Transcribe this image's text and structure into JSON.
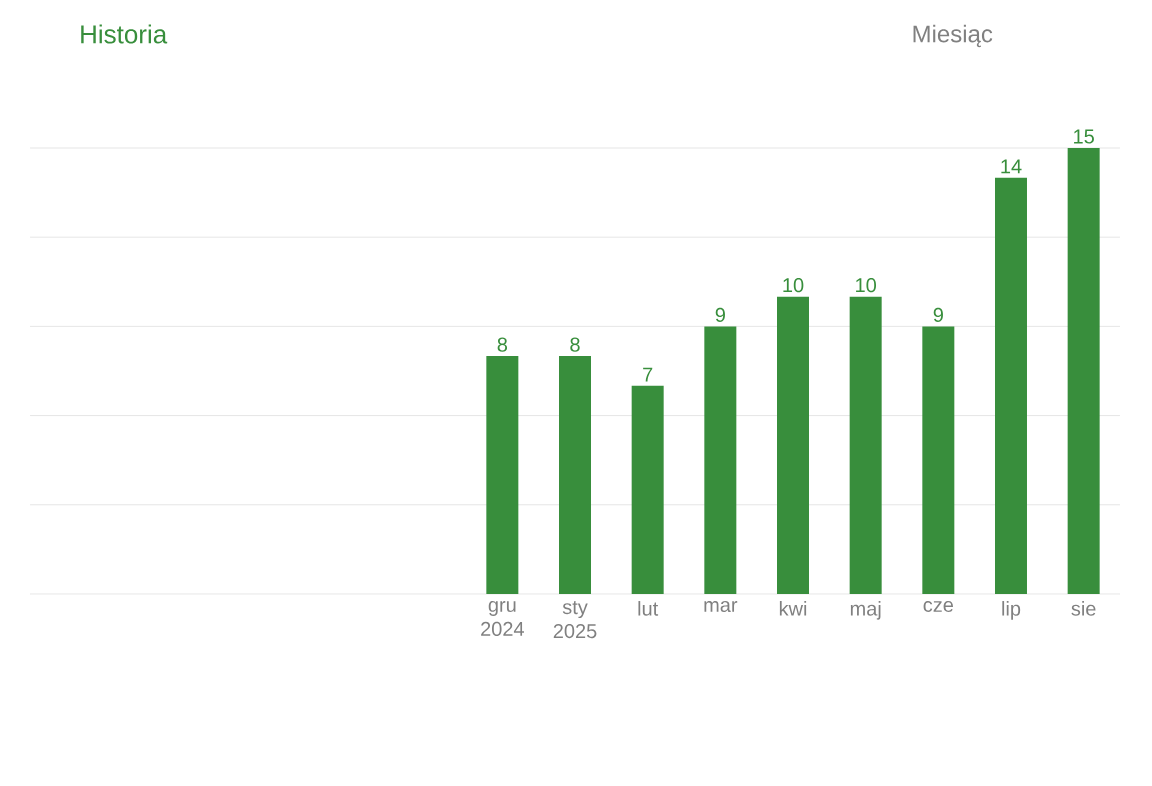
{
  "chart_data": {
    "type": "bar",
    "title": "Historia",
    "annotations": [
      "Miesiąc"
    ],
    "categories": [
      null,
      null,
      null,
      null,
      null,
      null,
      "gru 2024",
      "sty 2025",
      "lut",
      "mar",
      "kwi",
      "maj",
      "cze",
      "lip",
      "sie"
    ],
    "values": [
      null,
      null,
      null,
      null,
      null,
      null,
      8,
      8,
      7,
      9,
      10,
      10,
      9,
      14,
      15
    ],
    "color": "#388e3c",
    "data_labels": true,
    "ylim": [
      0,
      15
    ],
    "yticks": [
      {
        "value": 0,
        "label": null
      },
      {
        "value": 3,
        "label": null
      },
      {
        "value": 6,
        "label": null
      },
      {
        "value": 9,
        "label": null
      },
      {
        "value": 12,
        "label": null
      },
      {
        "value": 15,
        "label": null
      }
    ],
    "grid": "y",
    "tick_labels": "x"
  }
}
